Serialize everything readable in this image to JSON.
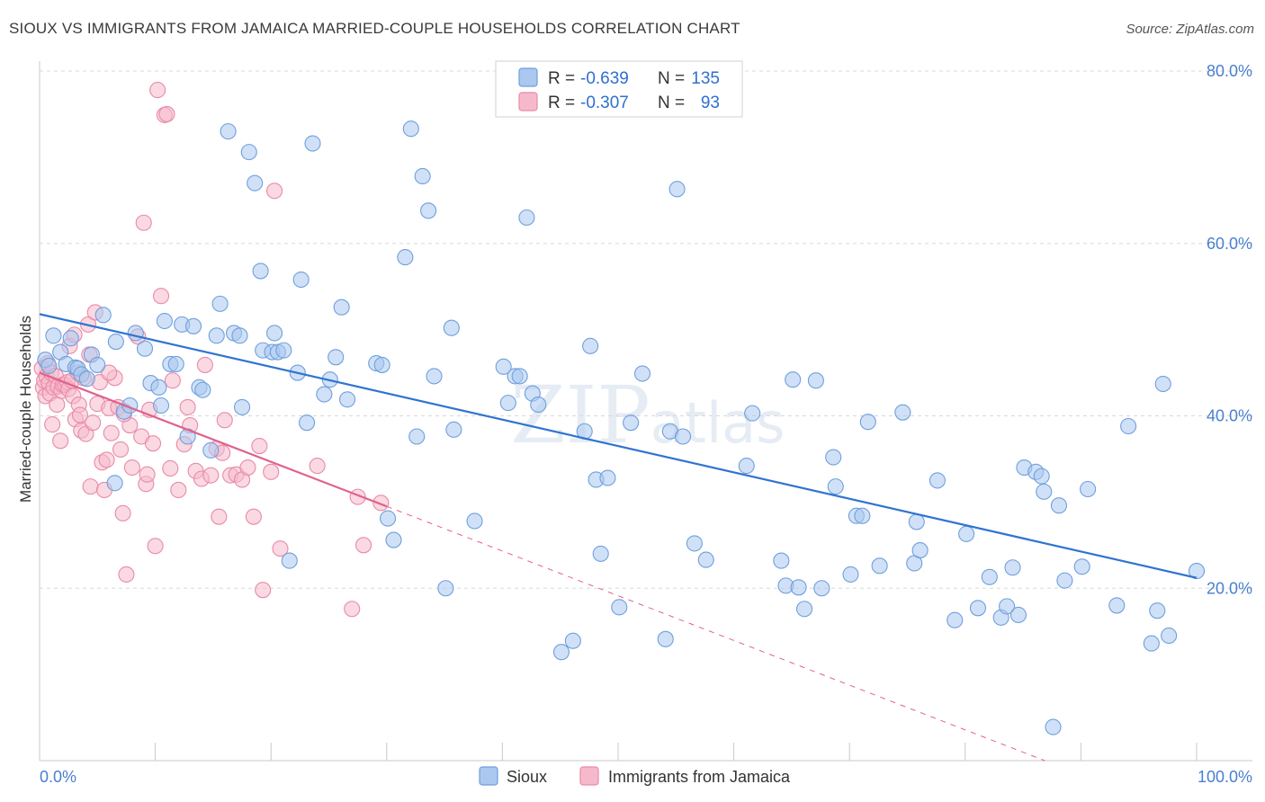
{
  "title": "SIOUX VS IMMIGRANTS FROM JAMAICA MARRIED-COUPLE HOUSEHOLDS CORRELATION CHART",
  "source": "Source: ZipAtlas.com",
  "watermark": "ZIPatlas",
  "colors": {
    "sioux_fill": "#aac8f0",
    "sioux_stroke": "#6f9fdc",
    "sioux_line": "#2f74d0",
    "jamaica_fill": "#f6b9cc",
    "jamaica_stroke": "#e98aa8",
    "jamaica_line": "#e0628b",
    "tick_text": "#4a7fd0",
    "grid": "#d8d8d8"
  },
  "legend": {
    "r_label": "R =",
    "n_label": "N =",
    "sioux_r": "-0.639",
    "sioux_n": "135",
    "jamaica_r": "-0.307",
    "jamaica_n": "93"
  },
  "chart_data": {
    "type": "scatter",
    "title": "SIOUX VS IMMIGRANTS FROM JAMAICA MARRIED-COUPLE HOUSEHOLDS CORRELATION CHART",
    "xlabel": "",
    "ylabel": "Married-couple Households",
    "xlim": [
      0,
      100
    ],
    "ylim": [
      0,
      80
    ],
    "x_tick_labels": [
      "0.0%",
      "100.0%"
    ],
    "y_tick_labels": [
      "20.0%",
      "40.0%",
      "60.0%",
      "80.0%"
    ],
    "y_ticks": [
      20,
      40,
      60,
      80
    ],
    "grid": true,
    "legend_position": "top-center",
    "series": [
      {
        "name": "Sioux",
        "trend": {
          "x": [
            0,
            100
          ],
          "y": [
            51.8,
            21.2
          ]
        },
        "points": [
          [
            0.5,
            46.5
          ],
          [
            0.8,
            45.8
          ],
          [
            1.2,
            49.3
          ],
          [
            1.8,
            47.4
          ],
          [
            2.3,
            46.0
          ],
          [
            2.7,
            49.0
          ],
          [
            3.1,
            45.6
          ],
          [
            3.3,
            45.5
          ],
          [
            3.6,
            44.8
          ],
          [
            4.1,
            44.3
          ],
          [
            4.5,
            47.1
          ],
          [
            5.0,
            45.9
          ],
          [
            5.5,
            51.7
          ],
          [
            6.5,
            32.2
          ],
          [
            6.6,
            48.6
          ],
          [
            7.3,
            40.5
          ],
          [
            7.8,
            41.2
          ],
          [
            8.3,
            49.6
          ],
          [
            9.1,
            47.8
          ],
          [
            9.6,
            43.8
          ],
          [
            10.3,
            43.3
          ],
          [
            10.5,
            41.2
          ],
          [
            10.8,
            51.0
          ],
          [
            11.3,
            46.0
          ],
          [
            11.8,
            46.0
          ],
          [
            12.3,
            50.6
          ],
          [
            12.8,
            37.6
          ],
          [
            13.3,
            50.4
          ],
          [
            13.8,
            43.3
          ],
          [
            14.1,
            43.0
          ],
          [
            14.8,
            36.0
          ],
          [
            15.3,
            49.3
          ],
          [
            15.6,
            53.0
          ],
          [
            16.3,
            73.0
          ],
          [
            16.8,
            49.6
          ],
          [
            17.3,
            49.3
          ],
          [
            17.5,
            41.0
          ],
          [
            18.1,
            70.6
          ],
          [
            18.6,
            67.0
          ],
          [
            19.1,
            56.8
          ],
          [
            19.3,
            47.6
          ],
          [
            20.1,
            47.4
          ],
          [
            20.3,
            49.6
          ],
          [
            20.6,
            47.4
          ],
          [
            21.1,
            47.6
          ],
          [
            21.6,
            23.2
          ],
          [
            22.3,
            45.0
          ],
          [
            22.6,
            55.8
          ],
          [
            23.1,
            39.2
          ],
          [
            23.6,
            71.6
          ],
          [
            24.6,
            42.5
          ],
          [
            25.1,
            44.2
          ],
          [
            25.6,
            46.8
          ],
          [
            26.1,
            52.6
          ],
          [
            26.6,
            41.9
          ],
          [
            29.1,
            46.1
          ],
          [
            29.6,
            45.9
          ],
          [
            30.1,
            28.1
          ],
          [
            30.6,
            25.6
          ],
          [
            31.6,
            58.4
          ],
          [
            32.1,
            73.3
          ],
          [
            32.6,
            37.6
          ],
          [
            33.1,
            67.8
          ],
          [
            33.6,
            63.8
          ],
          [
            34.1,
            44.6
          ],
          [
            35.1,
            20.0
          ],
          [
            35.6,
            50.2
          ],
          [
            35.8,
            38.4
          ],
          [
            37.6,
            27.8
          ],
          [
            40.1,
            45.7
          ],
          [
            40.5,
            41.5
          ],
          [
            41.1,
            44.6
          ],
          [
            41.5,
            44.6
          ],
          [
            42.1,
            63.0
          ],
          [
            42.6,
            42.6
          ],
          [
            43.1,
            41.3
          ],
          [
            45.1,
            12.6
          ],
          [
            46.1,
            13.9
          ],
          [
            47.1,
            38.2
          ],
          [
            47.6,
            48.1
          ],
          [
            48.1,
            32.6
          ],
          [
            48.5,
            24.0
          ],
          [
            49.1,
            32.8
          ],
          [
            50.1,
            17.8
          ],
          [
            51.1,
            39.2
          ],
          [
            52.1,
            44.9
          ],
          [
            54.1,
            14.1
          ],
          [
            54.5,
            38.2
          ],
          [
            55.1,
            66.3
          ],
          [
            55.6,
            37.6
          ],
          [
            56.6,
            25.2
          ],
          [
            57.6,
            23.3
          ],
          [
            61.1,
            34.2
          ],
          [
            61.6,
            40.3
          ],
          [
            64.1,
            23.2
          ],
          [
            64.5,
            20.3
          ],
          [
            65.1,
            44.2
          ],
          [
            65.6,
            20.1
          ],
          [
            66.1,
            17.6
          ],
          [
            67.1,
            44.1
          ],
          [
            67.6,
            20.0
          ],
          [
            68.6,
            35.2
          ],
          [
            68.8,
            31.8
          ],
          [
            70.1,
            21.6
          ],
          [
            70.6,
            28.4
          ],
          [
            71.1,
            28.4
          ],
          [
            71.6,
            39.3
          ],
          [
            72.6,
            22.6
          ],
          [
            74.6,
            40.4
          ],
          [
            75.6,
            22.9
          ],
          [
            75.8,
            27.7
          ],
          [
            76.1,
            24.4
          ],
          [
            77.6,
            32.5
          ],
          [
            79.1,
            16.3
          ],
          [
            80.1,
            26.3
          ],
          [
            81.1,
            17.7
          ],
          [
            82.1,
            21.3
          ],
          [
            83.1,
            16.6
          ],
          [
            83.6,
            17.9
          ],
          [
            84.1,
            22.4
          ],
          [
            84.6,
            16.9
          ],
          [
            85.1,
            34.0
          ],
          [
            86.1,
            33.5
          ],
          [
            86.6,
            33.0
          ],
          [
            86.8,
            31.2
          ],
          [
            87.6,
            3.9
          ],
          [
            88.1,
            29.6
          ],
          [
            88.6,
            20.9
          ],
          [
            90.1,
            22.5
          ],
          [
            90.6,
            31.5
          ],
          [
            93.1,
            18.0
          ],
          [
            94.1,
            38.8
          ],
          [
            96.1,
            13.6
          ],
          [
            96.6,
            17.4
          ],
          [
            97.1,
            43.7
          ],
          [
            97.6,
            14.5
          ],
          [
            100.0,
            22.0
          ]
        ]
      },
      {
        "name": "Immigrants from Jamaica",
        "trend": {
          "x": [
            0,
            30
          ],
          "y": [
            45.0,
            29.5
          ]
        },
        "trend_extension": {
          "x": [
            30,
            100
          ],
          "y": [
            29.5,
            -6.8
          ]
        },
        "points": [
          [
            0.2,
            45.5
          ],
          [
            0.3,
            43.3
          ],
          [
            0.4,
            44.1
          ],
          [
            0.5,
            42.3
          ],
          [
            0.6,
            44.6
          ],
          [
            0.7,
            46.1
          ],
          [
            0.8,
            43.8
          ],
          [
            0.9,
            42.6
          ],
          [
            1.0,
            45.0
          ],
          [
            1.1,
            39.0
          ],
          [
            1.2,
            43.3
          ],
          [
            1.4,
            44.6
          ],
          [
            1.5,
            41.3
          ],
          [
            1.6,
            43.4
          ],
          [
            1.8,
            37.1
          ],
          [
            1.9,
            42.9
          ],
          [
            2.0,
            43.6
          ],
          [
            2.2,
            43.6
          ],
          [
            2.4,
            43.9
          ],
          [
            2.5,
            43.1
          ],
          [
            2.6,
            48.1
          ],
          [
            2.8,
            44.1
          ],
          [
            2.9,
            42.3
          ],
          [
            3.0,
            49.4
          ],
          [
            3.1,
            39.6
          ],
          [
            3.3,
            45.0
          ],
          [
            3.4,
            41.3
          ],
          [
            3.5,
            40.1
          ],
          [
            3.6,
            38.3
          ],
          [
            3.8,
            44.4
          ],
          [
            4.0,
            37.9
          ],
          [
            4.2,
            50.6
          ],
          [
            4.4,
            31.8
          ],
          [
            4.6,
            39.2
          ],
          [
            4.8,
            52.0
          ],
          [
            5.0,
            41.4
          ],
          [
            5.2,
            43.9
          ],
          [
            5.4,
            34.6
          ],
          [
            5.6,
            31.4
          ],
          [
            5.8,
            34.9
          ],
          [
            6.0,
            40.9
          ],
          [
            6.2,
            38.0
          ],
          [
            6.5,
            44.4
          ],
          [
            6.8,
            41.0
          ],
          [
            7.0,
            36.1
          ],
          [
            7.2,
            28.7
          ],
          [
            7.5,
            21.6
          ],
          [
            7.8,
            38.9
          ],
          [
            8.0,
            34.0
          ],
          [
            8.5,
            49.2
          ],
          [
            8.8,
            37.6
          ],
          [
            9.0,
            62.4
          ],
          [
            9.2,
            32.1
          ],
          [
            9.5,
            40.7
          ],
          [
            9.8,
            36.8
          ],
          [
            10.0,
            24.9
          ],
          [
            10.2,
            77.8
          ],
          [
            10.5,
            53.9
          ],
          [
            10.8,
            74.9
          ],
          [
            11.0,
            75.0
          ],
          [
            11.5,
            44.1
          ],
          [
            12.0,
            31.4
          ],
          [
            12.5,
            36.7
          ],
          [
            13.0,
            38.9
          ],
          [
            13.5,
            33.6
          ],
          [
            14.0,
            32.7
          ],
          [
            14.3,
            45.9
          ],
          [
            14.8,
            33.1
          ],
          [
            15.3,
            36.2
          ],
          [
            15.5,
            28.3
          ],
          [
            16.0,
            39.5
          ],
          [
            16.5,
            33.1
          ],
          [
            17.0,
            33.2
          ],
          [
            17.5,
            32.6
          ],
          [
            18.5,
            28.3
          ],
          [
            19.0,
            36.5
          ],
          [
            19.3,
            19.8
          ],
          [
            20.0,
            33.5
          ],
          [
            20.3,
            66.1
          ],
          [
            27.0,
            17.6
          ],
          [
            27.5,
            30.6
          ],
          [
            28.0,
            25.0
          ],
          [
            29.5,
            29.9
          ],
          [
            4.3,
            47.1
          ],
          [
            6.0,
            45.0
          ],
          [
            7.3,
            40.2
          ],
          [
            9.3,
            33.2
          ],
          [
            11.3,
            33.9
          ],
          [
            12.8,
            41.0
          ],
          [
            15.8,
            35.7
          ],
          [
            18.0,
            34.0
          ],
          [
            20.8,
            24.6
          ],
          [
            24.0,
            34.2
          ]
        ]
      }
    ]
  },
  "bottom_legend": {
    "sioux": "Sioux",
    "jamaica": "Immigrants from Jamaica"
  }
}
